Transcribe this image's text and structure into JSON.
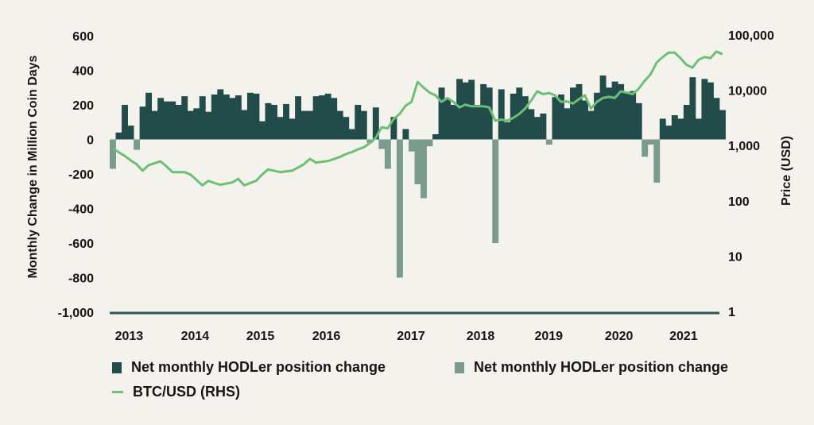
{
  "chart_data": {
    "type": "bar+line",
    "x_start": "2012-10",
    "x_frequency": "monthly",
    "x_ticks": [
      {
        "label": "2013",
        "t": 2013.02
      },
      {
        "label": "2014",
        "t": 2013.94
      },
      {
        "label": "2015",
        "t": 2014.85
      },
      {
        "label": "2016",
        "t": 2015.77
      },
      {
        "label": "2017",
        "t": 2016.95
      },
      {
        "label": "2018",
        "t": 2017.92
      },
      {
        "label": "2019",
        "t": 2018.87
      },
      {
        "label": "2020",
        "t": 2019.85
      },
      {
        "label": "2021",
        "t": 2020.75
      }
    ],
    "xlim": [
      2012.75,
      2021.25
    ],
    "ylabel": "Monthly Change in Million Coin Days",
    "ylim": [
      -1000,
      600
    ],
    "y_ticks": [
      "600",
      "400",
      "200",
      "0",
      "-200",
      "-400",
      "-600",
      "-800",
      "-1,000"
    ],
    "y_tick_values": [
      600,
      400,
      200,
      0,
      -200,
      -400,
      -600,
      -800,
      -1000
    ],
    "y2label": "Price (USD)",
    "y2scale": "log",
    "y2lim": [
      1,
      100000
    ],
    "y2_ticks": [
      "100,000",
      "10,000",
      "1,000",
      "100",
      "10",
      "1"
    ],
    "y2_tick_values": [
      100000,
      10000,
      1000,
      100,
      10,
      1
    ],
    "series": [
      {
        "name": "Net monthly HODLer position change",
        "type": "area",
        "sign": "positive",
        "color": "#214c4a",
        "values": [
          -170,
          40,
          200,
          80,
          -60,
          190,
          270,
          165,
          240,
          220,
          220,
          200,
          250,
          165,
          180,
          250,
          160,
          260,
          290,
          260,
          240,
          255,
          170,
          270,
          265,
          105,
          210,
          200,
          130,
          205,
          120,
          250,
          165,
          165,
          250,
          255,
          265,
          240,
          165,
          130,
          60,
          200,
          165,
          -20,
          185,
          -55,
          -170,
          130,
          -800,
          60,
          -70,
          -260,
          -340,
          -40,
          30,
          300,
          230,
          200,
          350,
          330,
          345,
          200,
          320,
          300,
          -600,
          290,
          100,
          265,
          300,
          250,
          175,
          130,
          150,
          -30,
          245,
          260,
          180,
          300,
          320,
          225,
          165,
          270,
          370,
          300,
          335,
          320,
          270,
          280,
          210,
          -100,
          -30,
          -250,
          120,
          80,
          140,
          120,
          200,
          360,
          120,
          350,
          330,
          240,
          170
        ]
      },
      {
        "name": "Net monthly HODLer position change",
        "type": "area",
        "sign": "negative",
        "color": "#7a9b8e"
      },
      {
        "name": "BTC/USD (RHS)",
        "type": "line",
        "axis": "right",
        "color": "#6dbf75",
        "values": [
          890,
          760,
          650,
          540,
          460,
          350,
          440,
          480,
          520,
          420,
          330,
          330,
          330,
          300,
          240,
          190,
          230,
          210,
          195,
          205,
          215,
          250,
          190,
          210,
          230,
          300,
          370,
          350,
          330,
          340,
          350,
          400,
          460,
          575,
          490,
          510,
          525,
          570,
          620,
          700,
          760,
          850,
          930,
          1100,
          1380,
          2140,
          2040,
          3020,
          3720,
          5250,
          6170,
          14100,
          11200,
          9100,
          8100,
          6170,
          7240,
          6170,
          4900,
          5500,
          5130,
          5130,
          5130,
          4900,
          2820,
          2950,
          2820,
          3160,
          3720,
          4680,
          6460,
          9550,
          8500,
          8900,
          8100,
          6170,
          6300,
          5750,
          6900,
          8100,
          4680,
          6170,
          7240,
          7590,
          7240,
          9550,
          9100,
          8500,
          10700,
          14800,
          19500,
          31600,
          39800,
          47900,
          47900,
          38000,
          28800,
          25700,
          35500,
          39800,
          38000,
          50100,
          44700
        ]
      }
    ],
    "legend": [
      {
        "label": "Net monthly HODLer position change",
        "color": "#214c4a"
      },
      {
        "label": "Net monthly HODLer position change",
        "color": "#7a9b8e"
      },
      {
        "label": "BTC/USD (RHS)",
        "color": "#6dbf75"
      }
    ],
    "legend_position": "bottom-left"
  }
}
